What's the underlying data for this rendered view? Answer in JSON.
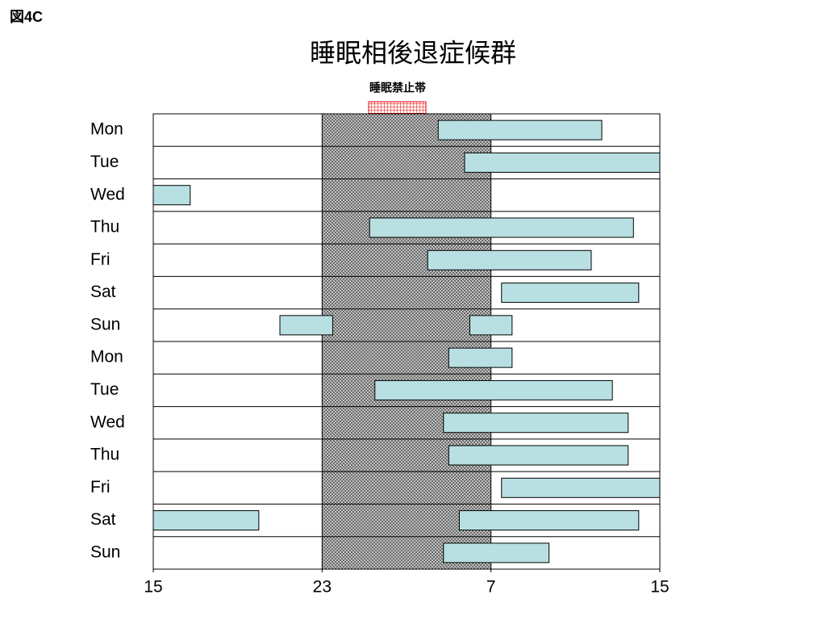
{
  "chart_data": {
    "type": "sleep-range",
    "corner_label": "図4C",
    "title": "睡眠相後退症候群",
    "band_label": "睡眠禁止帯",
    "band": [
      23,
      31
    ],
    "xlim": [
      15,
      39
    ],
    "xticks": [
      15,
      23,
      {
        "value": 31,
        "label": "7"
      },
      {
        "value": 39,
        "label": "15"
      }
    ],
    "color": "#b8e0e2",
    "rows": [
      {
        "label": "Mon",
        "sleep": [
          [
            28.5,
            36.25
          ]
        ]
      },
      {
        "label": "Tue",
        "sleep": [
          [
            29.75,
            39
          ]
        ]
      },
      {
        "label": "Wed",
        "sleep": [
          [
            15,
            16.75
          ]
        ]
      },
      {
        "label": "Thu",
        "sleep": [
          [
            25.25,
            37.75
          ]
        ]
      },
      {
        "label": "Fri",
        "sleep": [
          [
            28,
            35.75
          ]
        ]
      },
      {
        "label": "Sat",
        "sleep": [
          [
            31.5,
            38
          ]
        ]
      },
      {
        "label": "Sun",
        "sleep": [
          [
            21,
            23.5
          ],
          [
            30,
            32
          ]
        ]
      },
      {
        "label": "Mon",
        "sleep": [
          [
            29,
            32
          ]
        ]
      },
      {
        "label": "Tue",
        "sleep": [
          [
            25.5,
            36.75
          ]
        ]
      },
      {
        "label": "Wed",
        "sleep": [
          [
            28.75,
            37.5
          ]
        ]
      },
      {
        "label": "Thu",
        "sleep": [
          [
            29,
            37.5
          ]
        ]
      },
      {
        "label": "Fri",
        "sleep": [
          [
            31.5,
            39
          ]
        ]
      },
      {
        "label": "Sat",
        "sleep": [
          [
            15,
            20
          ],
          [
            29.5,
            38
          ]
        ]
      },
      {
        "label": "Sun",
        "sleep": [
          [
            28.75,
            33.75
          ]
        ]
      }
    ]
  }
}
